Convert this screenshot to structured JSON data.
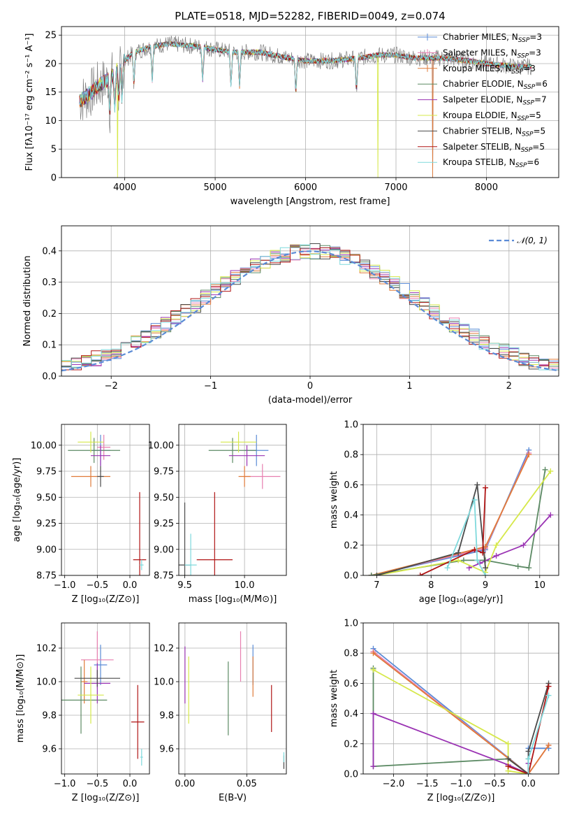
{
  "colors": {
    "chabrier_miles": "#5b8bd6",
    "salpeter_miles": "#e77fb0",
    "kroupa_miles": "#e07b39",
    "chabrier_elodie": "#5c8a64",
    "salpeter_elodie": "#9a33b3",
    "kroupa_elodie": "#d6e84a",
    "chabrier_stelib": "#4a4a4a",
    "salpeter_stelib": "#b01515",
    "kroupa_stelib": "#7fd9dc",
    "data": "#808080"
  },
  "chart_data": [
    {
      "id": "spectrum",
      "type": "line",
      "title": "PLATE=0518, MJD=52282, FIBERID=0049, z=0.074",
      "xlabel": "wavelength [Angstrom, rest frame]",
      "ylabel": "Flux [fλ10⁻¹⁷ erg cm⁻² s⁻¹ A⁻¹]",
      "xlim": [
        3300,
        8800
      ],
      "ylim": [
        0,
        26.5
      ],
      "xticks": [
        4000,
        5000,
        6000,
        7000,
        8000
      ],
      "yticks": [
        0,
        5,
        10,
        15,
        20,
        25
      ],
      "continuum": {
        "x": [
          3500,
          3600,
          3700,
          3800,
          3900,
          4000,
          4100,
          4300,
          4500,
          4800,
          5000,
          5200,
          5500,
          5800,
          6000,
          6300,
          6600,
          6800,
          7000,
          7200,
          7500,
          7800,
          8000,
          8300,
          8500
        ],
        "y": [
          13.5,
          14.5,
          16,
          17,
          18.5,
          20.5,
          22,
          23,
          23.5,
          23,
          22.5,
          22,
          22,
          21,
          20.5,
          20.5,
          21,
          21.5,
          21.5,
          21,
          21,
          20.5,
          20,
          19.5,
          19.5
        ]
      },
      "legend": [
        {
          "label": "Chabrier MILES, N",
          "sub": "SSP",
          "n": "=3",
          "color": "#5b8bd6"
        },
        {
          "label": "Salpeter MILES, N",
          "sub": "SSP",
          "n": "=3",
          "color": "#e77fb0"
        },
        {
          "label": "Kroupa MILES, N",
          "sub": "SSP",
          "n": "=3",
          "color": "#e07b39"
        },
        {
          "label": "Chabrier ELODIE, N",
          "sub": "SSP",
          "n": "=6",
          "color": "#5c8a64"
        },
        {
          "label": "Salpeter ELODIE, N",
          "sub": "SSP",
          "n": "=7",
          "color": "#9a33b3"
        },
        {
          "label": "Kroupa ELODIE, N",
          "sub": "SSP",
          "n": "=5",
          "color": "#d6e84a"
        },
        {
          "label": "Chabrier STELIB, N",
          "sub": "SSP",
          "n": "=5",
          "color": "#4a4a4a"
        },
        {
          "label": "Salpeter STELIB, N",
          "sub": "SSP",
          "n": "=5",
          "color": "#b01515"
        },
        {
          "label": "Kroupa STELIB, N",
          "sub": "SSP",
          "n": "=6",
          "color": "#7fd9dc"
        }
      ]
    },
    {
      "id": "residuals",
      "type": "area",
      "xlabel": "(data-model)/error",
      "ylabel": "Normed distribution",
      "xlim": [
        -2.5,
        2.5
      ],
      "ylim": [
        0,
        0.48
      ],
      "xticks": [
        -2,
        -1,
        0,
        1,
        2
      ],
      "xtick_labels": [
        "−2",
        "−1",
        "0",
        "1",
        "2"
      ],
      "yticks": [
        0.0,
        0.1,
        0.2,
        0.3,
        0.4
      ],
      "gaussian_label": "𝒩(0, 1)",
      "gaussian_color": "#5b8bd6",
      "bin_width": 0.1
    },
    {
      "id": "age-vs-Z",
      "type": "scatter",
      "xlabel": "Z [log₁₀(Z/Z⊙)]",
      "ylabel": "age  [log₁₀(age/yr)]",
      "xlim": [
        -1.05,
        0.3
      ],
      "ylim": [
        8.75,
        10.2
      ],
      "xticks": [
        -1.0,
        -0.5,
        0.0
      ],
      "xtick_labels": [
        "−1.0",
        "−0.5",
        "0.0"
      ],
      "yticks": [
        8.75,
        9.0,
        9.25,
        9.5,
        9.75,
        10.0
      ],
      "points": [
        {
          "x": -0.45,
          "y": 9.95,
          "xe": 0.15,
          "ye": 0.15,
          "c": "#5b8bd6"
        },
        {
          "x": -0.4,
          "y": 9.98,
          "xe": 0.1,
          "ye": 0.12,
          "c": "#e77fb0"
        },
        {
          "x": -0.6,
          "y": 9.7,
          "xe": 0.3,
          "ye": 0.1,
          "c": "#e07b39"
        },
        {
          "x": -0.55,
          "y": 9.95,
          "xe": 0.4,
          "ye": 0.12,
          "c": "#5c8a64"
        },
        {
          "x": -0.45,
          "y": 9.9,
          "xe": 0.15,
          "ye": 0.1,
          "c": "#9a33b3"
        },
        {
          "x": -0.6,
          "y": 10.03,
          "xe": 0.2,
          "ye": 0.1,
          "c": "#d6e84a"
        },
        {
          "x": -0.45,
          "y": 9.7,
          "xe": 0.05,
          "ye": 0.1,
          "c": "#4a4a4a"
        },
        {
          "x": 0.15,
          "y": 8.9,
          "xe": 0.1,
          "ye": 0.65,
          "c": "#b01515"
        },
        {
          "x": 0.18,
          "y": 8.85,
          "xe": 0.03,
          "ye": 0.05,
          "c": "#7fd9dc"
        }
      ]
    },
    {
      "id": "age-vs-mass",
      "type": "scatter",
      "xlabel": "mass [log₁₀(M/M⊙)]",
      "ylabel": "",
      "xlim": [
        9.45,
        10.35
      ],
      "ylim": [
        8.75,
        10.2
      ],
      "xticks": [
        9.5,
        10.0
      ],
      "xtick_labels": [
        "9.5",
        "10.0"
      ],
      "yticks": [
        8.75,
        9.0,
        9.25,
        9.5,
        9.75,
        10.0
      ],
      "points": [
        {
          "x": 10.1,
          "y": 9.95,
          "xe": 0.1,
          "ye": 0.15,
          "c": "#5b8bd6"
        },
        {
          "x": 10.15,
          "y": 9.7,
          "xe": 0.15,
          "ye": 0.12,
          "c": "#e77fb0"
        },
        {
          "x": 10.0,
          "y": 9.7,
          "xe": 0.05,
          "ye": 0.1,
          "c": "#e07b39"
        },
        {
          "x": 9.9,
          "y": 9.95,
          "xe": 0.2,
          "ye": 0.12,
          "c": "#5c8a64"
        },
        {
          "x": 10.02,
          "y": 9.9,
          "xe": 0.15,
          "ye": 0.1,
          "c": "#9a33b3"
        },
        {
          "x": 9.95,
          "y": 10.03,
          "xe": 0.15,
          "ye": 0.1,
          "c": "#d6e84a"
        },
        {
          "x": 9.5,
          "y": 8.85,
          "xe": 0.05,
          "ye": 0.6,
          "c": "#4a4a4a"
        },
        {
          "x": 9.75,
          "y": 8.9,
          "xe": 0.15,
          "ye": 0.65,
          "c": "#b01515"
        },
        {
          "x": 9.55,
          "y": 8.85,
          "xe": 0.05,
          "ye": 0.3,
          "c": "#7fd9dc"
        }
      ]
    },
    {
      "id": "mass-weight-vs-age",
      "type": "line",
      "xlabel": "age  [log₁₀(age/yr)]",
      "ylabel": "mass weight",
      "xlim": [
        6.75,
        10.35
      ],
      "ylim": [
        0,
        1.0
      ],
      "xticks": [
        7,
        8,
        9,
        10
      ],
      "yticks": [
        0.0,
        0.2,
        0.4,
        0.6,
        0.8,
        1.0
      ],
      "series": [
        {
          "c": "#5b8bd6",
          "x": [
            6.9,
            9.0,
            9.8
          ],
          "y": [
            0.0,
            0.17,
            0.83
          ]
        },
        {
          "c": "#e77fb0",
          "x": [
            6.9,
            9.0,
            9.8
          ],
          "y": [
            0.0,
            0.18,
            0.81
          ]
        },
        {
          "c": "#e07b39",
          "x": [
            6.9,
            9.0,
            9.8
          ],
          "y": [
            0.0,
            0.19,
            0.8
          ]
        },
        {
          "c": "#5c8a64",
          "x": [
            6.9,
            8.6,
            9.0,
            9.6,
            9.8,
            10.1
          ],
          "y": [
            0.0,
            0.1,
            0.1,
            0.06,
            0.05,
            0.7
          ]
        },
        {
          "c": "#9a33b3",
          "x": [
            8.7,
            8.9,
            9.2,
            9.7,
            10.2
          ],
          "y": [
            0.05,
            0.08,
            0.13,
            0.2,
            0.4
          ]
        },
        {
          "c": "#d6e84a",
          "x": [
            7.0,
            8.5,
            9.0,
            9.2,
            10.2
          ],
          "y": [
            0.0,
            0.1,
            0.02,
            0.2,
            0.69
          ]
        },
        {
          "c": "#4a4a4a",
          "x": [
            7.0,
            8.5,
            8.85,
            9.0
          ],
          "y": [
            0.0,
            0.15,
            0.6,
            0.05
          ]
        },
        {
          "c": "#b01515",
          "x": [
            7.8,
            8.8,
            8.95,
            9.0
          ],
          "y": [
            0.0,
            0.17,
            0.15,
            0.58
          ]
        },
        {
          "c": "#7fd9dc",
          "x": [
            8.3,
            8.8,
            8.85,
            9.0
          ],
          "y": [
            0.05,
            0.5,
            0.1,
            0.0
          ]
        }
      ]
    },
    {
      "id": "mass-vs-Z",
      "type": "scatter",
      "xlabel": "Z [log₁₀(Z/Z⊙)]",
      "ylabel": "mass [log₁₀(M/M⊙)]",
      "xlim": [
        -1.05,
        0.3
      ],
      "ylim": [
        9.45,
        10.35
      ],
      "xticks": [
        -1.0,
        -0.5,
        0.0
      ],
      "xtick_labels": [
        "−1.0",
        "−0.5",
        "0.0"
      ],
      "yticks": [
        9.6,
        9.8,
        10.0,
        10.2
      ],
      "points": [
        {
          "x": -0.45,
          "y": 10.1,
          "xe": 0.1,
          "ye": 0.12,
          "c": "#5b8bd6"
        },
        {
          "x": -0.5,
          "y": 10.13,
          "xe": 0.25,
          "ye": 0.17,
          "c": "#e77fb0"
        },
        {
          "x": -0.7,
          "y": 10.0,
          "xe": 0.05,
          "ye": 0.13,
          "c": "#e07b39"
        },
        {
          "x": -0.75,
          "y": 9.89,
          "xe": 0.4,
          "ye": 0.2,
          "c": "#5c8a64"
        },
        {
          "x": -0.5,
          "y": 9.99,
          "xe": 0.2,
          "ye": 0.12,
          "c": "#9a33b3"
        },
        {
          "x": -0.6,
          "y": 9.92,
          "xe": 0.2,
          "ye": 0.17,
          "c": "#d6e84a"
        },
        {
          "x": -0.5,
          "y": 10.02,
          "xe": 0.35,
          "ye": 0.05,
          "c": "#4a4a4a"
        },
        {
          "x": 0.12,
          "y": 9.76,
          "xe": 0.1,
          "ye": 0.22,
          "c": "#b01515"
        },
        {
          "x": 0.18,
          "y": 9.55,
          "xe": 0.02,
          "ye": 0.05,
          "c": "#7fd9dc"
        }
      ]
    },
    {
      "id": "mass-vs-EBV",
      "type": "scatter",
      "xlabel": "E(B-V)",
      "ylabel": "",
      "xlim": [
        -0.005,
        0.082
      ],
      "ylim": [
        9.45,
        10.35
      ],
      "xticks": [
        0.0,
        0.05
      ],
      "xtick_labels": [
        "0.00",
        "0.05"
      ],
      "yticks": [
        9.6,
        9.8,
        10.0,
        10.2
      ],
      "points": [
        {
          "x": 0.055,
          "y": 10.1,
          "xe": 0,
          "ye": 0.12,
          "c": "#5b8bd6"
        },
        {
          "x": 0.045,
          "y": 10.15,
          "xe": 0,
          "ye": 0.15,
          "c": "#e77fb0"
        },
        {
          "x": 0.055,
          "y": 10.03,
          "xe": 0,
          "ye": 0.12,
          "c": "#e07b39"
        },
        {
          "x": 0.035,
          "y": 9.9,
          "xe": 0,
          "ye": 0.22,
          "c": "#5c8a64"
        },
        {
          "x": 0.0,
          "y": 10.04,
          "xe": 0,
          "ye": 0.17,
          "c": "#9a33b3"
        },
        {
          "x": 0.003,
          "y": 9.95,
          "xe": 0,
          "ye": 0.2,
          "c": "#d6e84a"
        },
        {
          "x": 0.08,
          "y": 9.52,
          "xe": 0,
          "ye": 0.04,
          "c": "#4a4a4a"
        },
        {
          "x": 0.07,
          "y": 9.84,
          "xe": 0,
          "ye": 0.14,
          "c": "#b01515"
        },
        {
          "x": 0.08,
          "y": 9.55,
          "xe": 0,
          "ye": 0.03,
          "c": "#7fd9dc"
        }
      ]
    },
    {
      "id": "mass-weight-vs-Z",
      "type": "line",
      "xlabel": "Z [log₁₀(Z/Z⊙)]",
      "ylabel": "mass weight",
      "xlim": [
        -2.45,
        0.45
      ],
      "ylim": [
        0,
        1.0
      ],
      "xticks": [
        -2.0,
        -1.5,
        -1.0,
        -0.5,
        0.0
      ],
      "xtick_labels": [
        "−2.0",
        "−1.5",
        "−1.0",
        "−0.5",
        "0.0"
      ],
      "yticks": [
        0.0,
        0.2,
        0.4,
        0.6,
        0.8,
        1.0
      ],
      "series": [
        {
          "c": "#5b8bd6",
          "x": [
            -2.3,
            0.0,
            0.0,
            0.3
          ],
          "y": [
            0.83,
            0.0,
            0.17,
            0.17
          ]
        },
        {
          "c": "#e77fb0",
          "x": [
            -2.3,
            0.0,
            0.3
          ],
          "y": [
            0.81,
            0.0,
            0.19
          ]
        },
        {
          "c": "#e07b39",
          "x": [
            -2.3,
            0.0,
            0.3
          ],
          "y": [
            0.8,
            0.0,
            0.19
          ]
        },
        {
          "c": "#5c8a64",
          "x": [
            -2.3,
            -2.3,
            -0.3,
            0.0,
            0.0
          ],
          "y": [
            0.7,
            0.05,
            0.1,
            0.0,
            0.1
          ]
        },
        {
          "c": "#9a33b3",
          "x": [
            -2.3,
            -2.3,
            -0.3,
            0.0,
            0.0
          ],
          "y": [
            0.05,
            0.4,
            0.06,
            0.0,
            0.07
          ]
        },
        {
          "c": "#d6e84a",
          "x": [
            -2.3,
            -0.3,
            -0.3,
            0.0
          ],
          "y": [
            0.69,
            0.2,
            0.02,
            0.0
          ]
        },
        {
          "c": "#4a4a4a",
          "x": [
            -0.3,
            0.0,
            0.0,
            0.3
          ],
          "y": [
            0.1,
            0.0,
            0.15,
            0.6
          ]
        },
        {
          "c": "#b01515",
          "x": [
            -0.3,
            0.0,
            0.3
          ],
          "y": [
            0.05,
            0.0,
            0.58
          ]
        },
        {
          "c": "#7fd9dc",
          "x": [
            0.0,
            0.0,
            0.3
          ],
          "y": [
            0.0,
            0.1,
            0.52
          ]
        }
      ]
    }
  ]
}
